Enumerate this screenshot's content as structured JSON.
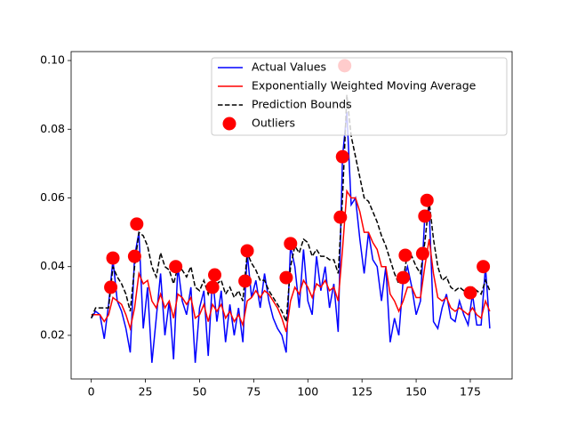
{
  "chart_data": {
    "type": "line",
    "x": [
      0,
      2,
      4,
      6,
      8,
      10,
      12,
      14,
      16,
      18,
      20,
      22,
      24,
      26,
      28,
      30,
      32,
      34,
      36,
      38,
      40,
      42,
      44,
      46,
      48,
      50,
      52,
      54,
      56,
      58,
      60,
      62,
      64,
      66,
      68,
      70,
      72,
      74,
      76,
      78,
      80,
      82,
      84,
      86,
      88,
      90,
      92,
      94,
      96,
      98,
      100,
      102,
      104,
      106,
      108,
      110,
      112,
      114,
      116,
      118,
      120,
      122,
      124,
      126,
      128,
      130,
      132,
      134,
      136,
      138,
      140,
      142,
      144,
      146,
      148,
      150,
      152,
      154,
      156,
      158,
      160,
      162,
      164,
      166,
      168,
      170,
      172,
      174,
      176,
      178,
      180,
      182,
      184
    ],
    "series": [
      {
        "name": "Actual Values",
        "type": "line",
        "color": "#0000ff",
        "linestyle": "solid",
        "values": [
          0.025,
          0.027,
          0.026,
          0.019,
          0.029,
          0.042,
          0.03,
          0.027,
          0.022,
          0.015,
          0.043,
          0.05,
          0.022,
          0.034,
          0.012,
          0.025,
          0.038,
          0.02,
          0.03,
          0.013,
          0.04,
          0.03,
          0.026,
          0.034,
          0.012,
          0.028,
          0.033,
          0.014,
          0.037,
          0.024,
          0.033,
          0.018,
          0.029,
          0.02,
          0.028,
          0.018,
          0.044,
          0.031,
          0.036,
          0.028,
          0.038,
          0.03,
          0.025,
          0.022,
          0.02,
          0.015,
          0.046,
          0.04,
          0.028,
          0.045,
          0.03,
          0.026,
          0.043,
          0.033,
          0.04,
          0.028,
          0.035,
          0.021,
          0.072,
          0.085,
          0.058,
          0.06,
          0.048,
          0.038,
          0.05,
          0.042,
          0.04,
          0.03,
          0.04,
          0.018,
          0.025,
          0.02,
          0.036,
          0.04,
          0.034,
          0.026,
          0.03,
          0.055,
          0.057,
          0.024,
          0.022,
          0.028,
          0.032,
          0.025,
          0.024,
          0.03,
          0.026,
          0.023,
          0.032,
          0.023,
          0.023,
          0.04,
          0.022
        ]
      },
      {
        "name": "Exponentially Weighted Moving Average",
        "type": "line",
        "color": "#ff0000",
        "linestyle": "solid",
        "values": [
          0.026,
          0.026,
          0.026,
          0.024,
          0.026,
          0.031,
          0.03,
          0.029,
          0.026,
          0.022,
          0.028,
          0.038,
          0.035,
          0.036,
          0.03,
          0.028,
          0.032,
          0.028,
          0.03,
          0.025,
          0.032,
          0.031,
          0.029,
          0.031,
          0.025,
          0.026,
          0.029,
          0.024,
          0.029,
          0.027,
          0.029,
          0.025,
          0.027,
          0.024,
          0.026,
          0.023,
          0.03,
          0.031,
          0.033,
          0.031,
          0.033,
          0.032,
          0.03,
          0.028,
          0.025,
          0.021,
          0.03,
          0.034,
          0.032,
          0.036,
          0.034,
          0.031,
          0.035,
          0.034,
          0.036,
          0.033,
          0.034,
          0.03,
          0.045,
          0.062,
          0.06,
          0.06,
          0.056,
          0.05,
          0.05,
          0.047,
          0.045,
          0.04,
          0.04,
          0.032,
          0.03,
          0.027,
          0.03,
          0.034,
          0.034,
          0.031,
          0.031,
          0.04,
          0.048,
          0.038,
          0.031,
          0.03,
          0.031,
          0.028,
          0.027,
          0.028,
          0.027,
          0.026,
          0.028,
          0.026,
          0.025,
          0.03,
          0.027
        ]
      },
      {
        "name": "Prediction Bounds",
        "type": "line",
        "color": "#000000",
        "linestyle": "dashed",
        "values": [
          0.025,
          0.028,
          0.028,
          0.028,
          0.028,
          0.04,
          0.037,
          0.035,
          0.032,
          0.027,
          0.04,
          0.05,
          0.049,
          0.046,
          0.04,
          0.037,
          0.044,
          0.04,
          0.039,
          0.035,
          0.04,
          0.039,
          0.037,
          0.04,
          0.034,
          0.033,
          0.036,
          0.032,
          0.036,
          0.035,
          0.036,
          0.032,
          0.034,
          0.031,
          0.033,
          0.03,
          0.044,
          0.041,
          0.039,
          0.036,
          0.036,
          0.033,
          0.031,
          0.029,
          0.027,
          0.024,
          0.04,
          0.046,
          0.044,
          0.048,
          0.047,
          0.043,
          0.045,
          0.043,
          0.043,
          0.042,
          0.042,
          0.038,
          0.06,
          0.09,
          0.078,
          0.072,
          0.066,
          0.06,
          0.059,
          0.056,
          0.053,
          0.049,
          0.046,
          0.042,
          0.038,
          0.035,
          0.036,
          0.044,
          0.043,
          0.04,
          0.038,
          0.047,
          0.059,
          0.048,
          0.04,
          0.036,
          0.037,
          0.034,
          0.033,
          0.034,
          0.033,
          0.032,
          0.034,
          0.033,
          0.032,
          0.036,
          0.033
        ]
      },
      {
        "name": "Outliers",
        "type": "scatter",
        "color": "#ff0000",
        "x": [
          9,
          10,
          20,
          21,
          39,
          56,
          57,
          71,
          72,
          90,
          92,
          115,
          116,
          117,
          144,
          145,
          153,
          154,
          155,
          175,
          181
        ],
        "values": [
          0.034,
          0.0425,
          0.043,
          0.0524,
          0.04,
          0.034,
          0.0376,
          0.0358,
          0.0446,
          0.0368,
          0.0467,
          0.0544,
          0.072,
          0.0985,
          0.0368,
          0.0433,
          0.0438,
          0.0547,
          0.0593,
          0.0324,
          0.04
        ]
      }
    ],
    "xlim": [
      -9.3,
      194.3
    ],
    "ylim": [
      0.0073,
      0.1026
    ],
    "xticks": [
      0,
      25,
      50,
      75,
      100,
      125,
      150,
      175
    ],
    "yticks": [
      0.02,
      0.04,
      0.06,
      0.08,
      {
        "value": 0.1,
        "label": "0.10"
      }
    ],
    "legend": "upper right"
  }
}
